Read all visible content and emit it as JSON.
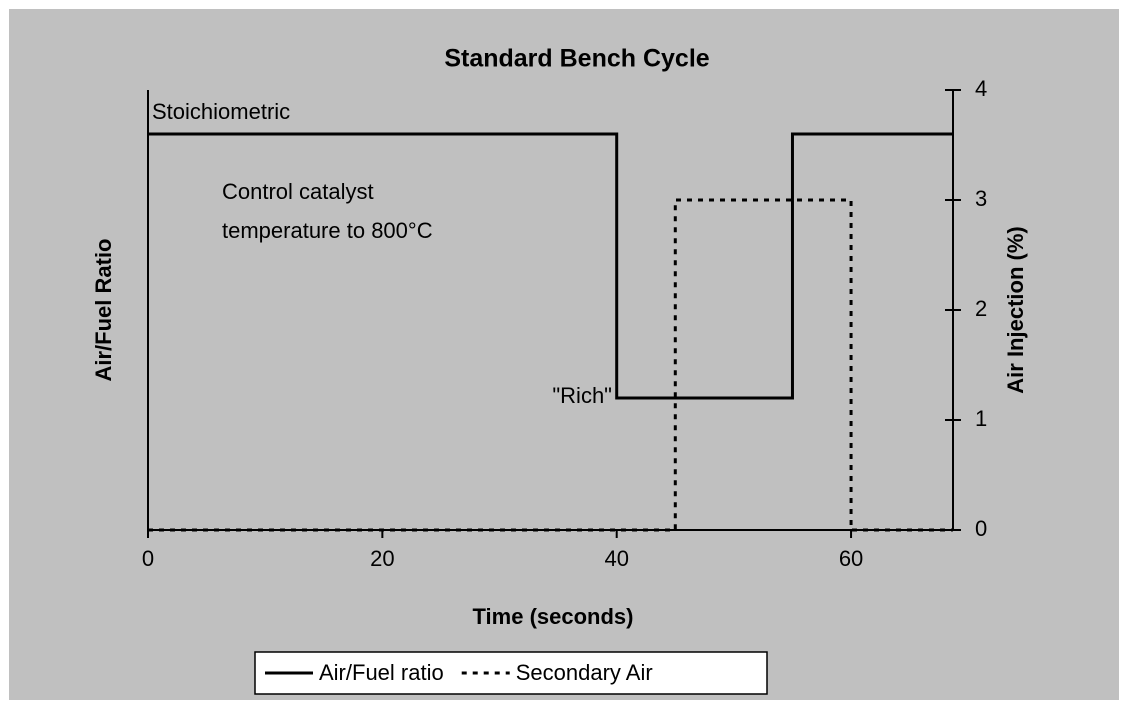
{
  "chart_data": {
    "type": "line",
    "title": "Standard Bench Cycle",
    "x_label": "Time (seconds)",
    "y_label": "Air/Fuel Ratio",
    "y2_label": "Air Injection (%)",
    "xlim": [
      0,
      68.7
    ],
    "xticks": [
      0,
      20,
      40,
      60
    ],
    "ylim": [
      0,
      4
    ],
    "y2lim": [
      0,
      4
    ],
    "y2ticks": [
      0,
      1,
      2,
      3,
      4
    ],
    "series": [
      {
        "name": "Air/Fuel ratio",
        "color": "#000000",
        "style": "solid",
        "x": [
          0,
          40,
          40,
          55,
          55,
          68.7
        ],
        "values": [
          3.6,
          3.6,
          1.2,
          1.2,
          3.6,
          3.6
        ]
      },
      {
        "name": "Secondary Air",
        "color": "#000000",
        "style": "dashed",
        "axis": "y2",
        "x": [
          0,
          45,
          45,
          60,
          60,
          68.7
        ],
        "values": [
          0,
          0,
          3,
          3,
          0,
          0
        ]
      }
    ],
    "annotations": [
      {
        "lines": [
          "Stoichiometric"
        ]
      },
      {
        "lines": [
          "Control catalyst",
          "temperature to 800°C"
        ]
      },
      {
        "lines": [
          "\"Rich\""
        ]
      }
    ],
    "legend": "bottom"
  }
}
